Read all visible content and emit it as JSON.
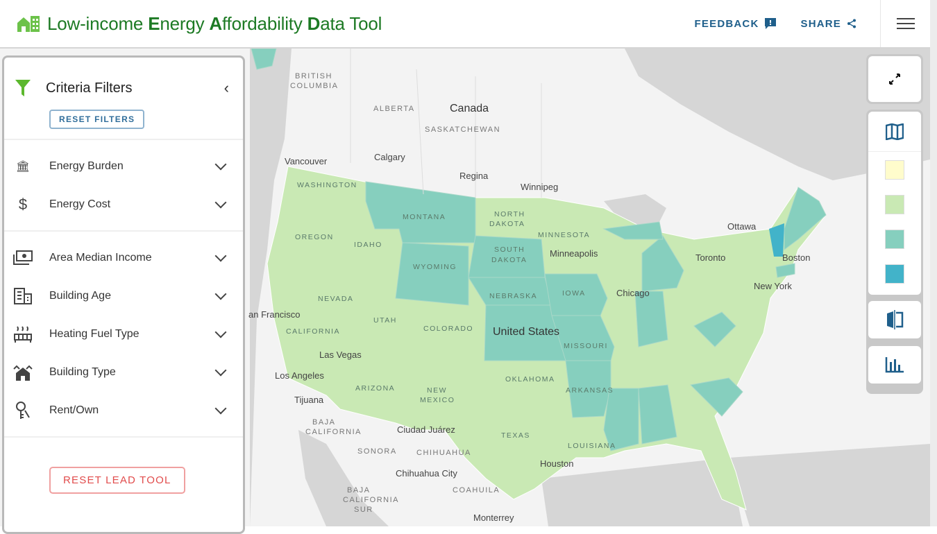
{
  "header": {
    "title_parts": [
      "Low-income ",
      "E",
      "nergy ",
      "A",
      "ffordability ",
      "D",
      "ata Tool"
    ],
    "feedback": "FEEDBACK",
    "share": "SHARE"
  },
  "panel": {
    "title": "Criteria Filters",
    "reset_filters": "RESET FILTERS",
    "reset_lead": "RESET LEAD TOOL",
    "filters": [
      {
        "label": "Energy Burden",
        "icon": "house-chart-icon"
      },
      {
        "label": "Energy Cost",
        "icon": "dollar-icon"
      },
      {
        "label": "Area Median Income",
        "icon": "money-icon"
      },
      {
        "label": "Building Age",
        "icon": "building-icon"
      },
      {
        "label": "Heating Fuel Type",
        "icon": "heater-icon"
      },
      {
        "label": "Building Type",
        "icon": "houses-icon"
      },
      {
        "label": "Rent/Own",
        "icon": "key-icon"
      }
    ]
  },
  "legend": {
    "colors": [
      "#fffccc",
      "#c9e9b4",
      "#86cfbe",
      "#42b3c9"
    ]
  },
  "colors": {
    "brand": "#1d7a24",
    "accent": "#1f5f8b",
    "reset": "#e14b4b",
    "land": "#f3f3f3",
    "water": "#d6d6d6"
  },
  "map": {
    "regions": [
      "BRITISH",
      "COLUMBIA",
      "ALBERTA",
      "SASKATCHEWAN",
      "BAJA",
      "CALIFORNIA",
      "BAJA",
      "CALIFORNIA",
      "SUR",
      "SONORA",
      "CHIHUAHUA",
      "COAHUILA"
    ],
    "countries": [
      "Canada",
      "United States"
    ],
    "cities": [
      "Vancouver",
      "Calgary",
      "Regina",
      "Winnipeg",
      "Ottawa",
      "Toronto",
      "Boston",
      "New York",
      "Chicago",
      "Minneapolis",
      "Las Vegas",
      "Los Angeles",
      "Tijuana",
      "an Francisco",
      "Ciudad Juárez",
      "Chihuahua City",
      "Houston",
      "Monterrey"
    ],
    "states": [
      "WASHINGTON",
      "OREGON",
      "IDAHO",
      "MONTANA",
      "WYOMING",
      "NEVADA",
      "UTAH",
      "COLORADO",
      "CALIFORNIA",
      "ARIZONA",
      "NEW",
      "MEXICO",
      "NORTH",
      "DAKOTA",
      "SOUTH",
      "DAKOTA",
      "NEBRASKA",
      "IOWA",
      "MINNESOTA",
      "MISSOURI",
      "OKLAHOMA",
      "ARKANSAS",
      "TEXAS",
      "LOUISIANA"
    ]
  }
}
